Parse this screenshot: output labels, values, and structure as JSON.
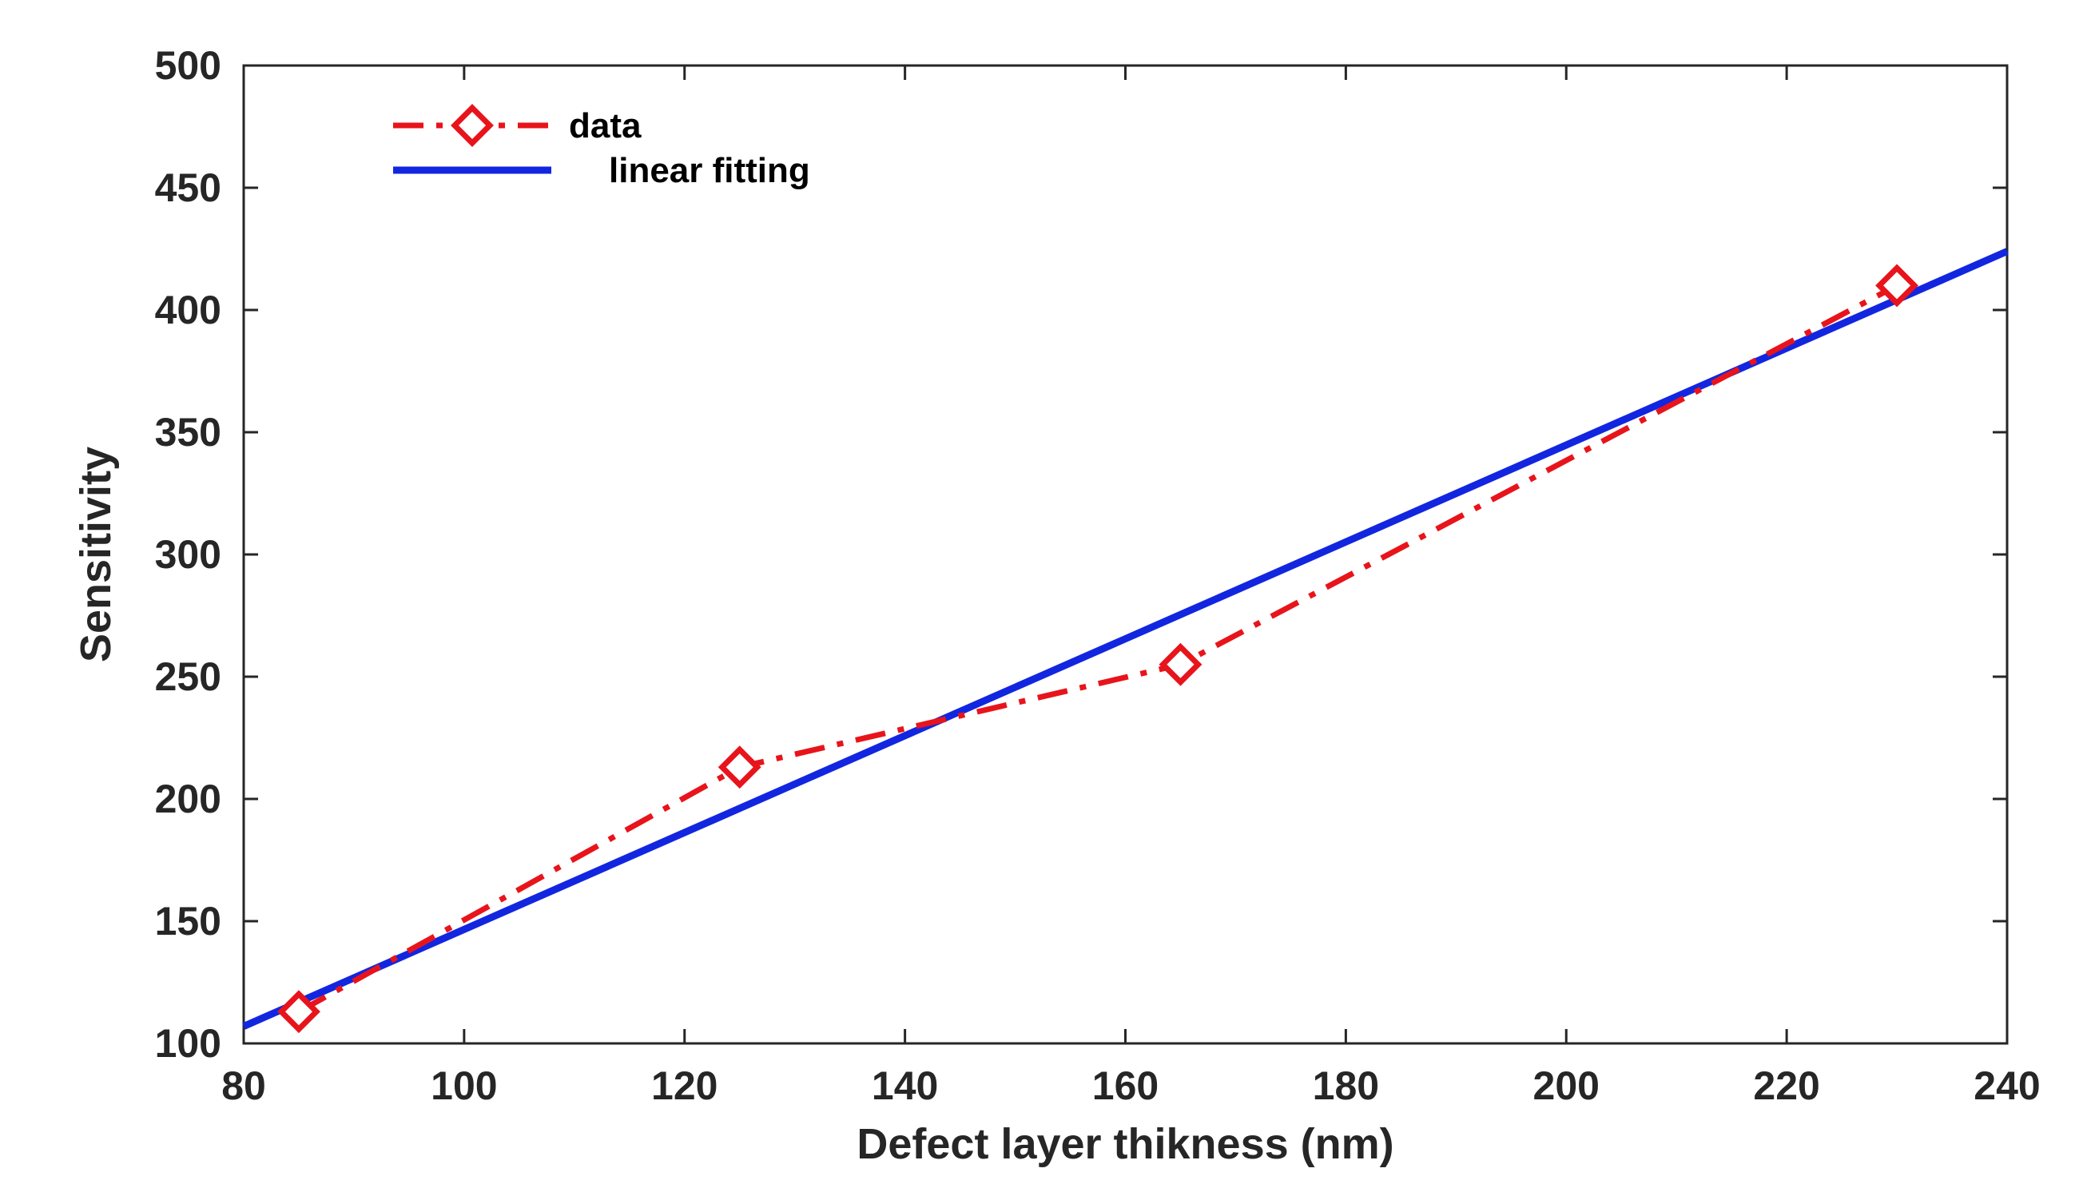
{
  "chart_data": {
    "type": "line",
    "title": "",
    "xlabel": "Defect layer thikness (nm)",
    "ylabel": "Sensitivity",
    "xlim": [
      80,
      240
    ],
    "ylim": [
      100,
      500
    ],
    "x_ticks": [
      80,
      100,
      120,
      140,
      160,
      180,
      200,
      220,
      240
    ],
    "y_ticks": [
      100,
      150,
      200,
      250,
      300,
      350,
      400,
      450,
      500
    ],
    "x_tick_labels": [
      "80",
      "100",
      "120",
      "140",
      "160",
      "180",
      "200",
      "220",
      "240"
    ],
    "y_tick_labels": [
      "100",
      "150",
      "200",
      "250",
      "300",
      "350",
      "400",
      "450",
      "500"
    ],
    "grid": false,
    "legend_position": "top-left",
    "series": [
      {
        "name": "data",
        "color": "#e8141b",
        "line_style": "dash-dot",
        "marker": "diamond",
        "x": [
          85,
          125,
          165,
          230
        ],
        "y": [
          113,
          213,
          255,
          410
        ]
      },
      {
        "name": "linear fitting",
        "color": "#1226e0",
        "line_style": "solid",
        "marker": "none",
        "x": [
          80,
          240
        ],
        "y": [
          107,
          424
        ]
      }
    ]
  }
}
